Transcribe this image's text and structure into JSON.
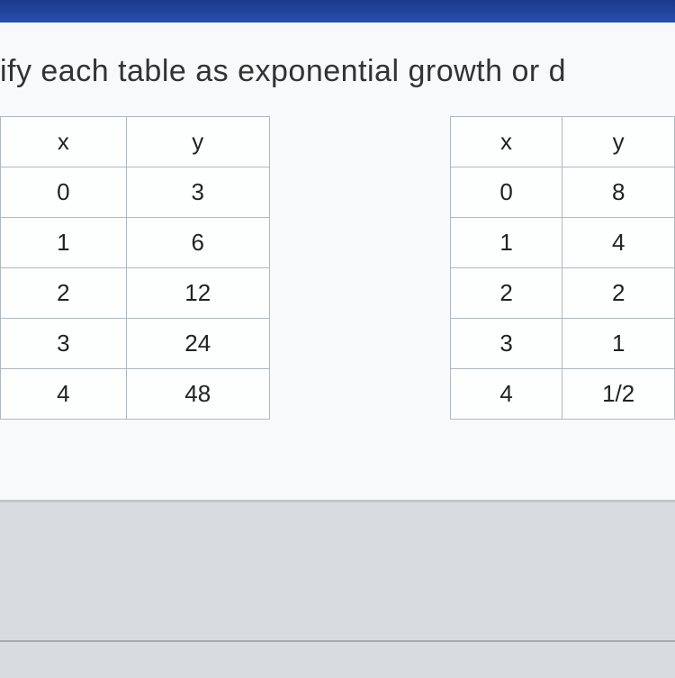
{
  "question": "tify each table as exponential growth or d",
  "table1": {
    "columns": [
      "x",
      "y"
    ],
    "rows": [
      [
        "0",
        "3"
      ],
      [
        "1",
        "6"
      ],
      [
        "2",
        "12"
      ],
      [
        "3",
        "24"
      ],
      [
        "4",
        "48"
      ]
    ]
  },
  "table2": {
    "columns": [
      "x",
      "y"
    ],
    "rows": [
      [
        "0",
        "8"
      ],
      [
        "1",
        "4"
      ],
      [
        "2",
        "2"
      ],
      [
        "3",
        "1"
      ],
      [
        "4",
        "1/2"
      ]
    ]
  },
  "styling": {
    "top_bar_color": "#1a3a8a",
    "content_bg": "#f8f9fa",
    "bottom_bg": "#d8dce0",
    "body_bg": "#b8bcc0",
    "border_color": "#b0b8bc",
    "text_color": "#333",
    "question_fontsize": 34,
    "cell_fontsize": 26
  }
}
